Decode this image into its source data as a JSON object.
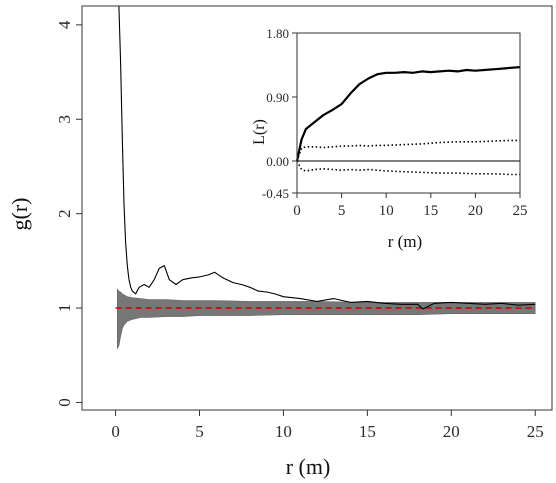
{
  "chart_data": [
    {
      "type": "line",
      "xlabel": "r (m)",
      "ylabel": "g(r)",
      "xlim": [
        -2,
        26
      ],
      "ylim": [
        -0.08,
        4.2
      ],
      "x_ticks": [
        0,
        5,
        10,
        15,
        20,
        25
      ],
      "y_ticks": [
        0,
        1,
        2,
        3,
        4
      ],
      "x_tick_labels": [
        "0",
        "5",
        "10",
        "15",
        "20",
        "25"
      ],
      "y_tick_labels": [
        "0",
        "1",
        "2",
        "3",
        "4"
      ],
      "grid": false,
      "reference_line": {
        "y": 1,
        "color": "#cc0000",
        "style": "dashed"
      },
      "envelope": {
        "color": "#777777",
        "x": [
          0.1,
          0.2,
          0.3,
          0.4,
          0.5,
          0.7,
          1.0,
          1.5,
          2,
          3,
          4,
          5,
          6,
          8,
          10,
          12,
          15,
          18,
          20,
          22,
          25
        ],
        "upper": [
          1.2,
          1.18,
          1.17,
          1.15,
          1.14,
          1.12,
          1.11,
          1.1,
          1.09,
          1.09,
          1.08,
          1.08,
          1.08,
          1.07,
          1.07,
          1.07,
          1.06,
          1.06,
          1.06,
          1.06,
          1.06
        ],
        "lower": [
          0.57,
          0.6,
          0.7,
          0.78,
          0.82,
          0.86,
          0.88,
          0.9,
          0.9,
          0.91,
          0.91,
          0.92,
          0.92,
          0.92,
          0.93,
          0.93,
          0.93,
          0.93,
          0.94,
          0.94,
          0.94
        ]
      },
      "series": [
        {
          "color": "#000000",
          "x": [
            0.2,
            0.3,
            0.4,
            0.5,
            0.6,
            0.7,
            0.8,
            0.9,
            1.0,
            1.2,
            1.4,
            1.7,
            2.0,
            2.3,
            2.6,
            2.9,
            3.2,
            3.6,
            4.0,
            4.5,
            5.0,
            5.5,
            5.9,
            6.4,
            7.0,
            7.5,
            8.0,
            8.5,
            9.0,
            9.5,
            10.0,
            11.0,
            12.0,
            13.0,
            14.0,
            15.0,
            16.0,
            17.0,
            18.0,
            18.3,
            19.0,
            20.0,
            21.0,
            22.0,
            23.0,
            24.0,
            25.0
          ],
          "y": [
            4.2,
            3.6,
            2.8,
            2.1,
            1.7,
            1.45,
            1.3,
            1.22,
            1.18,
            1.15,
            1.22,
            1.25,
            1.22,
            1.3,
            1.42,
            1.45,
            1.3,
            1.25,
            1.3,
            1.32,
            1.33,
            1.35,
            1.38,
            1.32,
            1.27,
            1.25,
            1.22,
            1.18,
            1.17,
            1.15,
            1.12,
            1.1,
            1.07,
            1.1,
            1.06,
            1.07,
            1.05,
            1.04,
            1.04,
            0.99,
            1.05,
            1.06,
            1.05,
            1.04,
            1.05,
            1.03,
            1.04
          ]
        }
      ]
    },
    {
      "type": "line",
      "xlabel": "r (m)",
      "ylabel": "L(r)",
      "xlim": [
        0,
        25
      ],
      "ylim": [
        -0.45,
        1.8
      ],
      "x_ticks": [
        0,
        5,
        10,
        15,
        20,
        25
      ],
      "y_ticks": [
        -0.45,
        0.0,
        0.9,
        1.8
      ],
      "x_tick_labels": [
        "0",
        "5",
        "10",
        "15",
        "20",
        "25"
      ],
      "y_tick_labels": [
        "-0.45",
        "0.00",
        "0.90",
        "1.80"
      ],
      "grid": false,
      "reference_line": {
        "y": 0,
        "color": "#000000",
        "style": "solid"
      },
      "series": [
        {
          "line_style": "solid",
          "color": "#000000",
          "x": [
            0,
            0.5,
            1,
            2,
            3,
            4,
            5,
            6,
            7,
            8,
            9,
            10,
            11,
            12,
            13,
            14,
            15,
            16,
            17,
            18,
            19,
            20,
            21,
            22,
            23,
            24,
            25
          ],
          "y": [
            0.0,
            0.3,
            0.45,
            0.55,
            0.65,
            0.72,
            0.8,
            0.95,
            1.08,
            1.16,
            1.22,
            1.24,
            1.24,
            1.25,
            1.24,
            1.26,
            1.25,
            1.26,
            1.27,
            1.26,
            1.28,
            1.27,
            1.28,
            1.29,
            1.3,
            1.31,
            1.32
          ]
        },
        {
          "line_style": "dotted",
          "color": "#000000",
          "x": [
            0,
            0.5,
            1,
            2,
            3,
            4,
            5,
            6,
            7,
            8,
            9,
            10,
            12,
            14,
            16,
            18,
            20,
            22,
            24,
            25
          ],
          "y": [
            0.0,
            0.18,
            0.2,
            0.2,
            0.19,
            0.2,
            0.21,
            0.21,
            0.22,
            0.21,
            0.22,
            0.22,
            0.23,
            0.24,
            0.26,
            0.27,
            0.27,
            0.28,
            0.29,
            0.29
          ]
        },
        {
          "line_style": "dotted",
          "color": "#000000",
          "x": [
            0,
            0.5,
            1,
            2,
            3,
            4,
            5,
            6,
            7,
            8,
            9,
            10,
            12,
            14,
            16,
            18,
            20,
            22,
            24,
            25
          ],
          "y": [
            0.0,
            -0.12,
            -0.14,
            -0.12,
            -0.11,
            -0.12,
            -0.13,
            -0.12,
            -0.13,
            -0.12,
            -0.13,
            -0.14,
            -0.15,
            -0.16,
            -0.17,
            -0.17,
            -0.18,
            -0.18,
            -0.19,
            -0.19
          ]
        }
      ]
    }
  ]
}
